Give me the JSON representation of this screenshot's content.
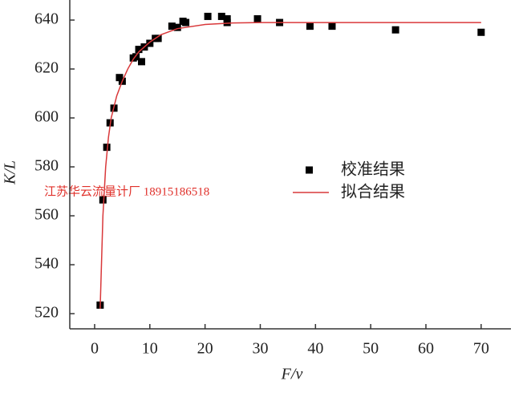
{
  "chart_data": {
    "type": "scatter",
    "x_label": "F/v",
    "y_label": "K/L",
    "annotation": "江苏华云流量计厂  18915186518",
    "xlim": [
      -4.5,
      75.4
    ],
    "ylim": [
      513.8,
      648.2
    ],
    "xticks": [
      0,
      10,
      20,
      30,
      40,
      50,
      60,
      70
    ],
    "yticks": [
      520,
      540,
      560,
      580,
      600,
      620,
      640
    ],
    "grid": false,
    "legend": "right",
    "series": [
      {
        "name": "校准结果",
        "type": "scatter",
        "color": "#000000",
        "x": [
          1,
          1.5,
          2.2,
          2.8,
          3.5,
          4.5,
          5,
          7,
          7.5,
          8,
          8.5,
          9,
          10,
          11,
          11.5,
          14,
          15,
          16,
          16.5,
          20.5,
          23,
          24,
          24,
          29.5,
          33.5,
          39,
          43,
          54.5,
          70
        ],
        "values": [
          523.5,
          566.5,
          588,
          598,
          604,
          616.5,
          615,
          624.5,
          625,
          628,
          623,
          629,
          630.5,
          632.5,
          632.5,
          637.5,
          637,
          639.5,
          639,
          641.5,
          641.5,
          640.5,
          639,
          640.5,
          639,
          637.5,
          637.5,
          636,
          635
        ]
      },
      {
        "name": "拟合结果",
        "type": "line",
        "color": "#d9383a",
        "x": [
          1,
          1.5,
          2,
          2.5,
          3,
          4,
          5,
          6,
          7,
          8,
          10,
          12,
          15,
          20,
          25,
          30,
          40,
          50,
          60,
          70
        ],
        "values": [
          522,
          560,
          580,
          592,
          600,
          609,
          615,
          620,
          624,
          627,
          631,
          634,
          636.5,
          638.2,
          638.8,
          639,
          639,
          639,
          639,
          639
        ]
      }
    ]
  }
}
